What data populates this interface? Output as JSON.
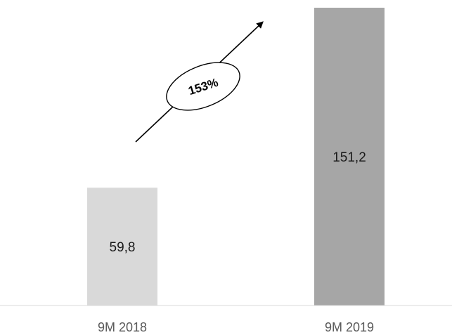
{
  "chart_data": {
    "type": "bar",
    "categories": [
      "9M 2018",
      "9M 2019"
    ],
    "values": [
      59.8,
      151.2
    ],
    "value_labels": [
      "59,8",
      "151,2"
    ],
    "colors": [
      "#d9d9d9",
      "#a6a6a6"
    ],
    "ylim": [
      0,
      151.2
    ],
    "grid": false,
    "legend": "none",
    "annotation": {
      "text": "153%",
      "type": "growth-arrow"
    }
  }
}
